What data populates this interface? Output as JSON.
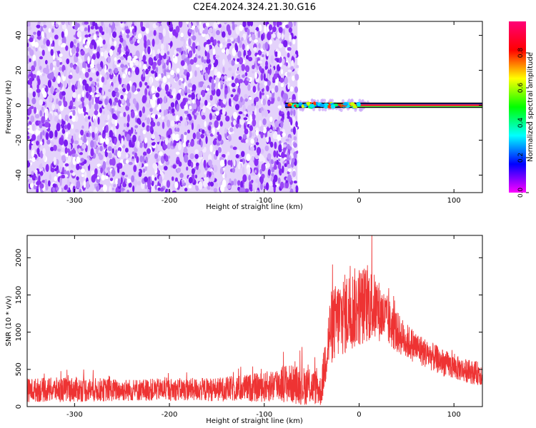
{
  "title": "C2E4.2024.324.21.30.G16",
  "chart_data": [
    {
      "type": "heatmap",
      "xlabel": "Height of straight line (km)",
      "ylabel": "Frequency (Hz)",
      "xlim": [
        -350,
        130
      ],
      "ylim": [
        -50,
        48
      ],
      "xticks": [
        -300,
        -200,
        -100,
        0,
        100
      ],
      "yticks": [
        -40,
        -20,
        0,
        20,
        40
      ],
      "colorbar": {
        "label": "Normalized spectral amplitude",
        "range": [
          0,
          0.98
        ],
        "ticks": [
          0.0,
          0.2,
          0.4,
          0.6,
          0.8
        ],
        "tick_labels": [
          "0.0",
          "0.2",
          "0.4",
          "0.6",
          "0.8"
        ],
        "colormap": [
          "#ff00ff",
          "#0000ff",
          "#00ffff",
          "#00ff00",
          "#ffff00",
          "#ff0000",
          "#ff0077"
        ]
      },
      "noise_region": {
        "x_range": [
          -350,
          -65
        ],
        "freq_range": [
          -50,
          48
        ],
        "amplitude_range": [
          0.0,
          0.15
        ]
      },
      "signal_trace": {
        "x_range": [
          -80,
          130
        ],
        "frequency": 0,
        "band_halfwidth_hz": 1.5,
        "peak_amplitude": 0.95
      }
    },
    {
      "type": "line",
      "xlabel": "Height of straight line (km)",
      "ylabel": "SNR (10 * v/v)",
      "xlim": [
        -350,
        130
      ],
      "ylim": [
        0,
        2300
      ],
      "xticks": [
        -300,
        -200,
        -100,
        0,
        100
      ],
      "yticks": [
        0,
        500,
        1000,
        1500,
        2000
      ],
      "series": [
        {
          "color": "#ee3333",
          "x": [
            -350,
            -300,
            -250,
            -200,
            -150,
            -100,
            -80,
            -60,
            -45,
            -40,
            -35,
            -30,
            -20,
            -10,
            0,
            10,
            20,
            30,
            40,
            50,
            60,
            70,
            80,
            90,
            100,
            110,
            120,
            130
          ],
          "mean": [
            220,
            230,
            220,
            230,
            230,
            260,
            320,
            280,
            260,
            200,
            700,
            1050,
            1200,
            1280,
            1350,
            1380,
            1300,
            1150,
            1000,
            880,
            800,
            720,
            650,
            580,
            530,
            490,
            460,
            440
          ],
          "spread": [
            160,
            170,
            150,
            150,
            160,
            200,
            260,
            260,
            240,
            200,
            400,
            500,
            550,
            550,
            550,
            520,
            420,
            340,
            280,
            240,
            220,
            200,
            190,
            180,
            170,
            160,
            160,
            160
          ]
        }
      ]
    }
  ]
}
